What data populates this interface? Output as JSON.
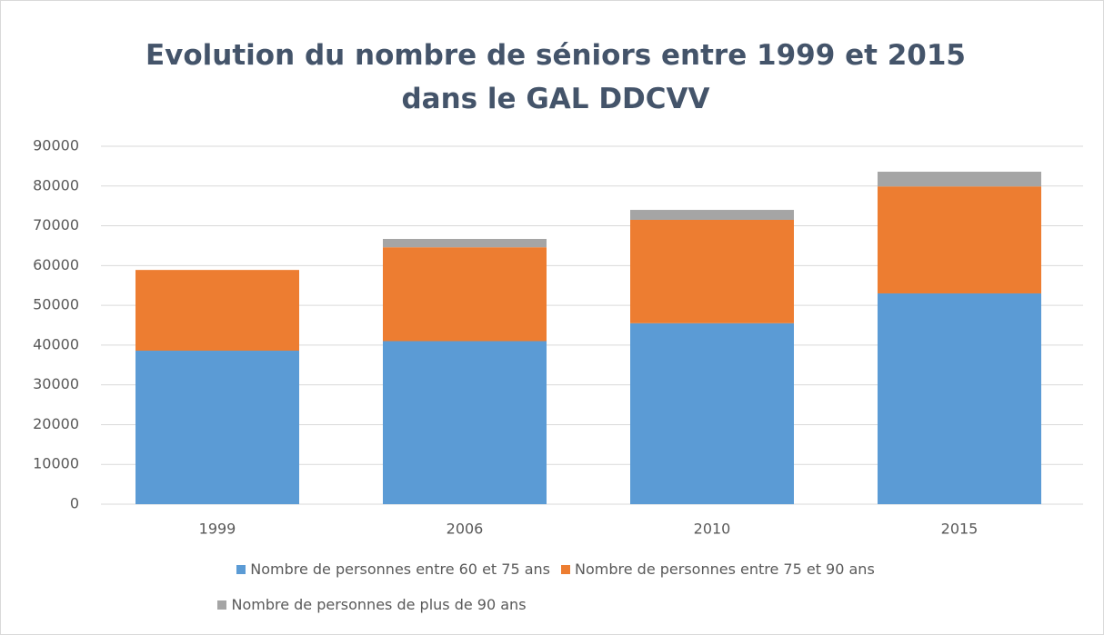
{
  "chart_data": {
    "type": "stacked_bar",
    "title": "Evolution du nombre de séniors entre 1999 et 2015 dans le GAL DDCVV",
    "categories": [
      "1999",
      "2006",
      "2010",
      "2015"
    ],
    "series": [
      {
        "name": "Nombre de personnes entre 60 et 75 ans",
        "color": "#5b9bd5",
        "values": [
          38600,
          41000,
          45500,
          53000
        ]
      },
      {
        "name": "Nombre de personnes entre 75 et 90 ans",
        "color": "#ed7d31",
        "values": [
          20300,
          23600,
          26000,
          26900
        ]
      },
      {
        "name": "Nombre de personnes de plus de 90 ans",
        "color": "#a5a5a5",
        "values": [
          0,
          2100,
          2500,
          3700
        ]
      }
    ],
    "ylim": [
      0,
      90000
    ],
    "yticks": [
      0,
      10000,
      20000,
      30000,
      40000,
      50000,
      60000,
      70000,
      80000,
      90000
    ],
    "grid": true
  }
}
